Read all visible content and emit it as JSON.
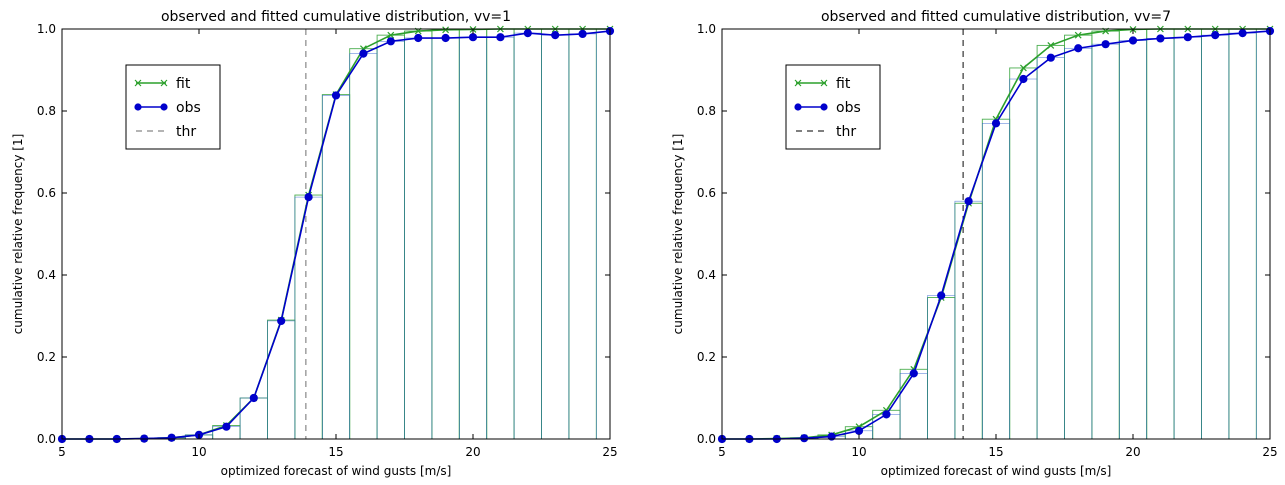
{
  "chart_data": [
    {
      "type": "line",
      "title": "observed and fitted cumulative distribution, vv=1",
      "xlabel": "optimized forecast of wind gusts [m/s]",
      "ylabel": "cumulative relative frequency [1]",
      "xlim": [
        5,
        25
      ],
      "ylim": [
        0.0,
        1.0
      ],
      "xticks": [
        "5",
        "10",
        "15",
        "20",
        "25"
      ],
      "yticks": [
        "0.0",
        "0.2",
        "0.4",
        "0.6",
        "0.8",
        "1.0"
      ],
      "legend_position": "upper-left",
      "legend": {
        "fit": "fit",
        "obs": "obs",
        "thr": "thr"
      },
      "colors": {
        "fit": "#2ca02c",
        "obs": "#0000cc",
        "thr": "#888888",
        "hist_fit": "#4caf50",
        "hist_obs": "#2255cc"
      },
      "threshold": 13.9,
      "x": [
        5,
        6,
        7,
        8,
        9,
        10,
        11,
        12,
        13,
        14,
        15,
        16,
        17,
        18,
        19,
        20,
        21,
        22,
        23,
        24,
        25
      ],
      "series": [
        {
          "name": "fit",
          "marker": "x",
          "values": [
            0.0,
            0.0,
            0.0,
            0.001,
            0.003,
            0.01,
            0.033,
            0.1,
            0.29,
            0.595,
            0.84,
            0.952,
            0.985,
            0.995,
            0.998,
            0.999,
            1.0,
            1.0,
            1.0,
            1.0,
            1.0
          ]
        },
        {
          "name": "obs",
          "marker": "o",
          "values": [
            0.0,
            0.0,
            0.0,
            0.001,
            0.003,
            0.01,
            0.03,
            0.1,
            0.288,
            0.59,
            0.838,
            0.94,
            0.97,
            0.978,
            0.978,
            0.98,
            0.98,
            0.99,
            0.985,
            0.988,
            0.995
          ]
        }
      ]
    },
    {
      "type": "line",
      "title": "observed and fitted cumulative distribution, vv=7",
      "xlabel": "optimized forecast of wind gusts [m/s]",
      "ylabel": "cumulative relative frequency [1]",
      "xlim": [
        5,
        25
      ],
      "ylim": [
        0.0,
        1.0
      ],
      "xticks": [
        "5",
        "10",
        "15",
        "20",
        "25"
      ],
      "yticks": [
        "0.0",
        "0.2",
        "0.4",
        "0.6",
        "0.8",
        "1.0"
      ],
      "legend_position": "upper-left",
      "legend": {
        "fit": "fit",
        "obs": "obs",
        "thr": "thr"
      },
      "colors": {
        "fit": "#2ca02c",
        "obs": "#0000cc",
        "thr": "#333333",
        "hist_fit": "#4caf50",
        "hist_obs": "#2255cc"
      },
      "threshold": 13.8,
      "x": [
        5,
        6,
        7,
        8,
        9,
        10,
        11,
        12,
        13,
        14,
        15,
        16,
        17,
        18,
        19,
        20,
        21,
        22,
        23,
        24,
        25
      ],
      "series": [
        {
          "name": "fit",
          "marker": "x",
          "values": [
            0.0,
            0.0,
            0.001,
            0.003,
            0.01,
            0.03,
            0.07,
            0.17,
            0.345,
            0.575,
            0.78,
            0.905,
            0.96,
            0.985,
            0.995,
            0.999,
            1.0,
            1.0,
            1.0,
            1.0,
            1.0
          ]
        },
        {
          "name": "obs",
          "marker": "o",
          "values": [
            0.0,
            0.0,
            0.0,
            0.002,
            0.006,
            0.02,
            0.06,
            0.16,
            0.35,
            0.58,
            0.77,
            0.878,
            0.93,
            0.953,
            0.963,
            0.972,
            0.977,
            0.98,
            0.985,
            0.99,
            0.995
          ]
        }
      ]
    }
  ]
}
